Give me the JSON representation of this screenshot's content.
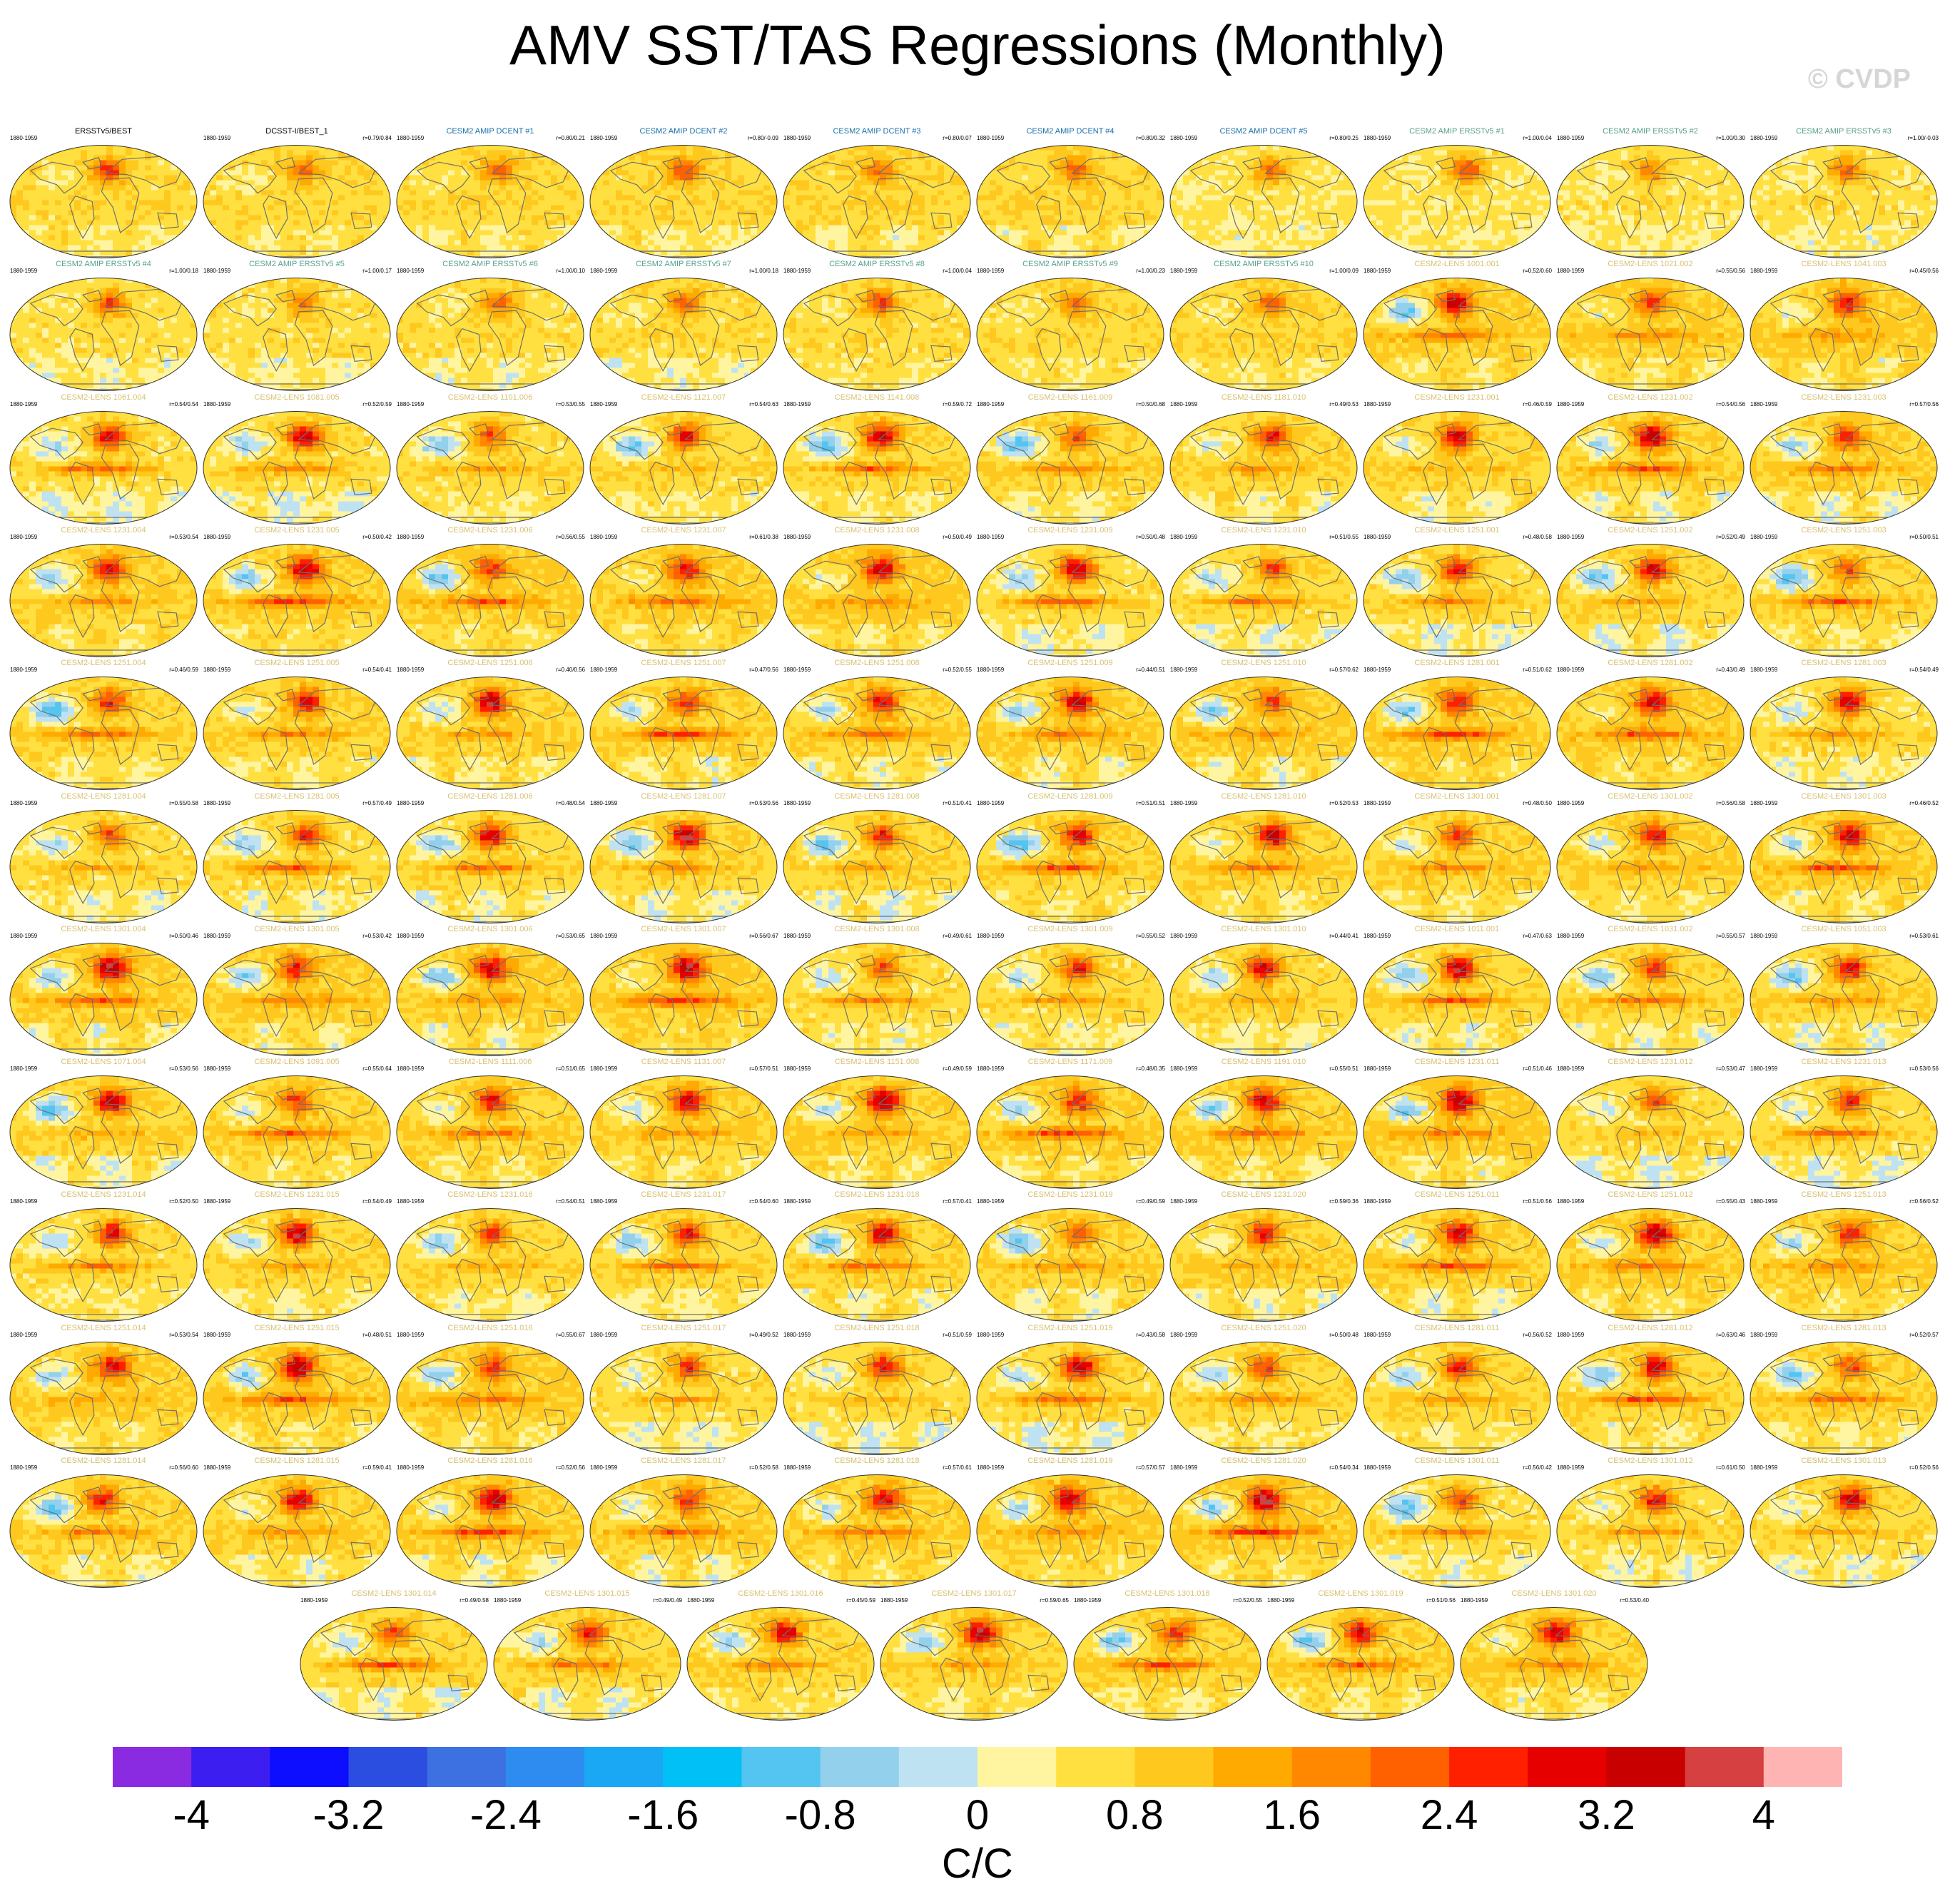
{
  "title": "AMV SST/TAS Regressions (Monthly)",
  "credit": "© CVDP",
  "period": "1880-1959",
  "colors": {
    "obs_title": "#000000",
    "dcent_title": "#1a6fa8",
    "ersst_title": "#56a08c",
    "lens_title": "#d8c070",
    "land": "#e6b23c",
    "coast": "#6f6f6f"
  },
  "chart_data": {
    "type": "heatmap",
    "title": "AMV SST/TAS Regressions (Monthly)",
    "units": "C/C",
    "colorbar": {
      "ticks": [
        "-4",
        "-3.2",
        "-2.4",
        "-1.6",
        "-0.8",
        "0",
        "0.8",
        "1.6",
        "2.4",
        "3.2",
        "4"
      ],
      "levels": [
        -4.4,
        -4.0,
        -3.6,
        -3.2,
        -2.8,
        -2.4,
        -2.0,
        -1.6,
        -1.2,
        -0.8,
        -0.4,
        0,
        0.4,
        0.8,
        1.2,
        1.6,
        2.0,
        2.4,
        2.8,
        3.2,
        3.6,
        4.0,
        4.4
      ],
      "colors": [
        "#8a2be2",
        "#3d1ef0",
        "#0d0dff",
        "#2b4de0",
        "#3d70e0",
        "#2e8cf0",
        "#1aa8f5",
        "#00c0f5",
        "#54c4f0",
        "#92d0ec",
        "#bfe2f2",
        "#fff5a0",
        "#ffe040",
        "#ffc81e",
        "#ffaa00",
        "#ff8800",
        "#ff6000",
        "#ff2000",
        "#e60000",
        "#c80000",
        "#d64040",
        "#ffb4b4"
      ]
    },
    "panels": [
      {
        "title": "ERSSTv5/BEST",
        "corr": "",
        "kind": "obs"
      },
      {
        "title": "DCSST-I/BEST_1",
        "corr": "r=0.79/0.84",
        "kind": "obs"
      },
      {
        "title": "CESM2 AMIP DCENT #1",
        "corr": "r=0.80/0.21",
        "kind": "dcent"
      },
      {
        "title": "CESM2 AMIP DCENT #2",
        "corr": "r=0.80/-0.09",
        "kind": "dcent"
      },
      {
        "title": "CESM2 AMIP DCENT #3",
        "corr": "r=0.80/0.07",
        "kind": "dcent"
      },
      {
        "title": "CESM2 AMIP DCENT #4",
        "corr": "r=0.80/0.32",
        "kind": "dcent"
      },
      {
        "title": "CESM2 AMIP DCENT #5",
        "corr": "r=0.80/0.25",
        "kind": "dcent"
      },
      {
        "title": "CESM2 AMIP ERSSTv5 #1",
        "corr": "r=1.00/0.04",
        "kind": "ersst"
      },
      {
        "title": "CESM2 AMIP ERSSTv5 #2",
        "corr": "r=1.00/0.30",
        "kind": "ersst"
      },
      {
        "title": "CESM2 AMIP ERSSTv5 #3",
        "corr": "r=1.00/-0.03",
        "kind": "ersst"
      },
      {
        "title": "CESM2 AMIP ERSSTv5 #4",
        "corr": "r=1.00/0.18",
        "kind": "ersst"
      },
      {
        "title": "CESM2 AMIP ERSSTv5 #5",
        "corr": "r=1.00/0.17",
        "kind": "ersst"
      },
      {
        "title": "CESM2 AMIP ERSSTv5 #6",
        "corr": "r=1.00/0.10",
        "kind": "ersst"
      },
      {
        "title": "CESM2 AMIP ERSSTv5 #7",
        "corr": "r=1.00/0.18",
        "kind": "ersst"
      },
      {
        "title": "CESM2 AMIP ERSSTv5 #8",
        "corr": "r=1.00/0.04",
        "kind": "ersst"
      },
      {
        "title": "CESM2 AMIP ERSSTv5 #9",
        "corr": "r=1.00/0.23",
        "kind": "ersst"
      },
      {
        "title": "CESM2 AMIP ERSSTv5 #10",
        "corr": "r=1.00/0.09",
        "kind": "ersst"
      },
      {
        "title": "CESM2-LENS 1001.001",
        "corr": "r=0.52/0.60",
        "kind": "lens"
      },
      {
        "title": "CESM2-LENS 1021.002",
        "corr": "r=0.55/0.56",
        "kind": "lens"
      },
      {
        "title": "CESM2-LENS 1041.003",
        "corr": "r=0.45/0.56",
        "kind": "lens"
      },
      {
        "title": "CESM2-LENS 1061.004",
        "corr": "r=0.54/0.54",
        "kind": "lens"
      },
      {
        "title": "CESM2-LENS 1081.005",
        "corr": "r=0.52/0.59",
        "kind": "lens"
      },
      {
        "title": "CESM2-LENS 1101.006",
        "corr": "r=0.53/0.55",
        "kind": "lens"
      },
      {
        "title": "CESM2-LENS 1121.007",
        "corr": "r=0.54/0.63",
        "kind": "lens"
      },
      {
        "title": "CESM2-LENS 1141.008",
        "corr": "r=0.59/0.72",
        "kind": "lens"
      },
      {
        "title": "CESM2-LENS 1161.009",
        "corr": "r=0.50/0.68",
        "kind": "lens"
      },
      {
        "title": "CESM2-LENS 1181.010",
        "corr": "r=0.49/0.53",
        "kind": "lens"
      },
      {
        "title": "CESM2-LENS 1231.001",
        "corr": "r=0.46/0.59",
        "kind": "lens"
      },
      {
        "title": "CESM2-LENS 1231.002",
        "corr": "r=0.54/0.56",
        "kind": "lens"
      },
      {
        "title": "CESM2-LENS 1231.003",
        "corr": "r=0.57/0.56",
        "kind": "lens"
      },
      {
        "title": "CESM2-LENS 1231.004",
        "corr": "r=0.53/0.54",
        "kind": "lens"
      },
      {
        "title": "CESM2-LENS 1231.005",
        "corr": "r=0.50/0.42",
        "kind": "lens"
      },
      {
        "title": "CESM2-LENS 1231.006",
        "corr": "r=0.56/0.55",
        "kind": "lens"
      },
      {
        "title": "CESM2-LENS 1231.007",
        "corr": "r=0.61/0.38",
        "kind": "lens"
      },
      {
        "title": "CESM2-LENS 1231.008",
        "corr": "r=0.50/0.49",
        "kind": "lens"
      },
      {
        "title": "CESM2-LENS 1231.009",
        "corr": "r=0.50/0.48",
        "kind": "lens"
      },
      {
        "title": "CESM2-LENS 1231.010",
        "corr": "r=0.51/0.55",
        "kind": "lens"
      },
      {
        "title": "CESM2-LENS 1251.001",
        "corr": "r=0.48/0.58",
        "kind": "lens"
      },
      {
        "title": "CESM2-LENS 1251.002",
        "corr": "r=0.52/0.49",
        "kind": "lens"
      },
      {
        "title": "CESM2-LENS 1251.003",
        "corr": "r=0.50/0.51",
        "kind": "lens"
      },
      {
        "title": "CESM2-LENS 1251.004",
        "corr": "r=0.46/0.59",
        "kind": "lens"
      },
      {
        "title": "CESM2-LENS 1251.005",
        "corr": "r=0.54/0.41",
        "kind": "lens"
      },
      {
        "title": "CESM2-LENS 1251.006",
        "corr": "r=0.40/0.56",
        "kind": "lens"
      },
      {
        "title": "CESM2-LENS 1251.007",
        "corr": "r=0.47/0.56",
        "kind": "lens"
      },
      {
        "title": "CESM2-LENS 1251.008",
        "corr": "r=0.52/0.55",
        "kind": "lens"
      },
      {
        "title": "CESM2-LENS 1251.009",
        "corr": "r=0.44/0.51",
        "kind": "lens"
      },
      {
        "title": "CESM2-LENS 1251.010",
        "corr": "r=0.57/0.62",
        "kind": "lens"
      },
      {
        "title": "CESM2-LENS 1281.001",
        "corr": "r=0.51/0.62",
        "kind": "lens"
      },
      {
        "title": "CESM2-LENS 1281.002",
        "corr": "r=0.43/0.49",
        "kind": "lens"
      },
      {
        "title": "CESM2-LENS 1281.003",
        "corr": "r=0.54/0.49",
        "kind": "lens"
      },
      {
        "title": "CESM2-LENS 1281.004",
        "corr": "r=0.55/0.58",
        "kind": "lens"
      },
      {
        "title": "CESM2-LENS 1281.005",
        "corr": "r=0.57/0.49",
        "kind": "lens"
      },
      {
        "title": "CESM2-LENS 1281.006",
        "corr": "r=0.48/0.54",
        "kind": "lens"
      },
      {
        "title": "CESM2-LENS 1281.007",
        "corr": "r=0.53/0.56",
        "kind": "lens"
      },
      {
        "title": "CESM2-LENS 1281.008",
        "corr": "r=0.51/0.41",
        "kind": "lens"
      },
      {
        "title": "CESM2-LENS 1281.009",
        "corr": "r=0.51/0.51",
        "kind": "lens"
      },
      {
        "title": "CESM2-LENS 1281.010",
        "corr": "r=0.52/0.53",
        "kind": "lens"
      },
      {
        "title": "CESM2-LENS 1301.001",
        "corr": "r=0.48/0.50",
        "kind": "lens"
      },
      {
        "title": "CESM2-LENS 1301.002",
        "corr": "r=0.56/0.58",
        "kind": "lens"
      },
      {
        "title": "CESM2-LENS 1301.003",
        "corr": "r=0.46/0.52",
        "kind": "lens"
      },
      {
        "title": "CESM2-LENS 1301.004",
        "corr": "r=0.50/0.46",
        "kind": "lens"
      },
      {
        "title": "CESM2-LENS 1301.005",
        "corr": "r=0.53/0.42",
        "kind": "lens"
      },
      {
        "title": "CESM2-LENS 1301.006",
        "corr": "r=0.53/0.65",
        "kind": "lens"
      },
      {
        "title": "CESM2-LENS 1301.007",
        "corr": "r=0.56/0.67",
        "kind": "lens"
      },
      {
        "title": "CESM2-LENS 1301.008",
        "corr": "r=0.49/0.61",
        "kind": "lens"
      },
      {
        "title": "CESM2-LENS 1301.009",
        "corr": "r=0.55/0.52",
        "kind": "lens"
      },
      {
        "title": "CESM2-LENS 1301.010",
        "corr": "r=0.44/0.41",
        "kind": "lens"
      },
      {
        "title": "CESM2-LENS 1011.001",
        "corr": "r=0.47/0.63",
        "kind": "lens"
      },
      {
        "title": "CESM2-LENS 1031.002",
        "corr": "r=0.55/0.57",
        "kind": "lens"
      },
      {
        "title": "CESM2-LENS 1051.003",
        "corr": "r=0.53/0.61",
        "kind": "lens"
      },
      {
        "title": "CESM2-LENS 1071.004",
        "corr": "r=0.53/0.56",
        "kind": "lens"
      },
      {
        "title": "CESM2-LENS 1091.005",
        "corr": "r=0.55/0.64",
        "kind": "lens"
      },
      {
        "title": "CESM2-LENS 1111.006",
        "corr": "r=0.51/0.65",
        "kind": "lens"
      },
      {
        "title": "CESM2-LENS 1131.007",
        "corr": "r=0.57/0.51",
        "kind": "lens"
      },
      {
        "title": "CESM2-LENS 1151.008",
        "corr": "r=0.49/0.59",
        "kind": "lens"
      },
      {
        "title": "CESM2-LENS 1171.009",
        "corr": "r=0.48/0.35",
        "kind": "lens"
      },
      {
        "title": "CESM2-LENS 1191.010",
        "corr": "r=0.55/0.51",
        "kind": "lens"
      },
      {
        "title": "CESM2-LENS 1231.011",
        "corr": "r=0.51/0.46",
        "kind": "lens"
      },
      {
        "title": "CESM2-LENS 1231.012",
        "corr": "r=0.53/0.47",
        "kind": "lens"
      },
      {
        "title": "CESM2-LENS 1231.013",
        "corr": "r=0.53/0.56",
        "kind": "lens"
      },
      {
        "title": "CESM2-LENS 1231.014",
        "corr": "r=0.52/0.50",
        "kind": "lens"
      },
      {
        "title": "CESM2-LENS 1231.015",
        "corr": "r=0.54/0.49",
        "kind": "lens"
      },
      {
        "title": "CESM2-LENS 1231.016",
        "corr": "r=0.54/0.51",
        "kind": "lens"
      },
      {
        "title": "CESM2-LENS 1231.017",
        "corr": "r=0.54/0.60",
        "kind": "lens"
      },
      {
        "title": "CESM2-LENS 1231.018",
        "corr": "r=0.57/0.41",
        "kind": "lens"
      },
      {
        "title": "CESM2-LENS 1231.019",
        "corr": "r=0.49/0.59",
        "kind": "lens"
      },
      {
        "title": "CESM2-LENS 1231.020",
        "corr": "r=0.59/0.36",
        "kind": "lens"
      },
      {
        "title": "CESM2-LENS 1251.011",
        "corr": "r=0.51/0.56",
        "kind": "lens"
      },
      {
        "title": "CESM2-LENS 1251.012",
        "corr": "r=0.55/0.43",
        "kind": "lens"
      },
      {
        "title": "CESM2-LENS 1251.013",
        "corr": "r=0.56/0.52",
        "kind": "lens"
      },
      {
        "title": "CESM2-LENS 1251.014",
        "corr": "r=0.53/0.54",
        "kind": "lens"
      },
      {
        "title": "CESM2-LENS 1251.015",
        "corr": "r=0.48/0.51",
        "kind": "lens"
      },
      {
        "title": "CESM2-LENS 1251.016",
        "corr": "r=0.55/0.67",
        "kind": "lens"
      },
      {
        "title": "CESM2-LENS 1251.017",
        "corr": "r=0.49/0.52",
        "kind": "lens"
      },
      {
        "title": "CESM2-LENS 1251.018",
        "corr": "r=0.51/0.59",
        "kind": "lens"
      },
      {
        "title": "CESM2-LENS 1251.019",
        "corr": "r=0.43/0.58",
        "kind": "lens"
      },
      {
        "title": "CESM2-LENS 1251.020",
        "corr": "r=0.50/0.48",
        "kind": "lens"
      },
      {
        "title": "CESM2-LENS 1281.011",
        "corr": "r=0.56/0.52",
        "kind": "lens"
      },
      {
        "title": "CESM2-LENS 1281.012",
        "corr": "r=0.63/0.46",
        "kind": "lens"
      },
      {
        "title": "CESM2-LENS 1281.013",
        "corr": "r=0.52/0.57",
        "kind": "lens"
      },
      {
        "title": "CESM2-LENS 1281.014",
        "corr": "r=0.56/0.60",
        "kind": "lens"
      },
      {
        "title": "CESM2-LENS 1281.015",
        "corr": "r=0.59/0.41",
        "kind": "lens"
      },
      {
        "title": "CESM2-LENS 1281.016",
        "corr": "r=0.52/0.56",
        "kind": "lens"
      },
      {
        "title": "CESM2-LENS 1281.017",
        "corr": "r=0.52/0.58",
        "kind": "lens"
      },
      {
        "title": "CESM2-LENS 1281.018",
        "corr": "r=0.57/0.61",
        "kind": "lens"
      },
      {
        "title": "CESM2-LENS 1281.019",
        "corr": "r=0.57/0.57",
        "kind": "lens"
      },
      {
        "title": "CESM2-LENS 1281.020",
        "corr": "r=0.54/0.34",
        "kind": "lens"
      },
      {
        "title": "CESM2-LENS 1301.011",
        "corr": "r=0.56/0.42",
        "kind": "lens"
      },
      {
        "title": "CESM2-LENS 1301.012",
        "corr": "r=0.61/0.50",
        "kind": "lens"
      },
      {
        "title": "CESM2-LENS 1301.013",
        "corr": "r=0.52/0.56",
        "kind": "lens"
      },
      {
        "title": "CESM2-LENS 1301.014",
        "corr": "r=0.49/0.58",
        "kind": "lens"
      },
      {
        "title": "CESM2-LENS 1301.015",
        "corr": "r=0.49/0.49",
        "kind": "lens"
      },
      {
        "title": "CESM2-LENS 1301.016",
        "corr": "r=0.45/0.59",
        "kind": "lens"
      },
      {
        "title": "CESM2-LENS 1301.017",
        "corr": "r=0.59/0.65",
        "kind": "lens"
      },
      {
        "title": "CESM2-LENS 1301.018",
        "corr": "r=0.52/0.55",
        "kind": "lens"
      },
      {
        "title": "CESM2-LENS 1301.019",
        "corr": "r=0.51/0.56",
        "kind": "lens"
      },
      {
        "title": "CESM2-LENS 1301.020",
        "corr": "r=0.53/0.40",
        "kind": "lens"
      }
    ]
  }
}
